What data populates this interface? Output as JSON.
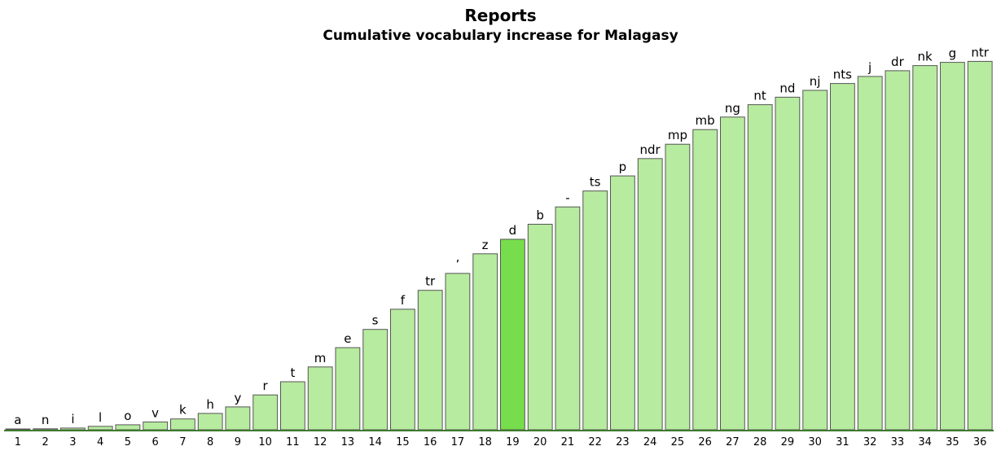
{
  "header": {
    "title": "Reports",
    "subtitle": "Cumulative vocabulary increase for Malagasy"
  },
  "colors": {
    "bar_fill": "#b7eb9f",
    "bar_selected_fill": "#77dd4c",
    "bar_stroke": "#555555",
    "axis": "#3e7a2e"
  },
  "chart_data": {
    "type": "bar",
    "title": "Reports",
    "subtitle": "Cumulative vocabulary increase for Malagasy",
    "xlabel": "",
    "ylabel": "",
    "grid": false,
    "legend": "none",
    "selected_index": 18,
    "categories": [
      "1",
      "2",
      "3",
      "4",
      "5",
      "6",
      "7",
      "8",
      "9",
      "10",
      "11",
      "12",
      "13",
      "14",
      "15",
      "16",
      "17",
      "18",
      "19",
      "20",
      "21",
      "22",
      "23",
      "24",
      "25",
      "26",
      "27",
      "28",
      "29",
      "30",
      "31",
      "32",
      "33",
      "34",
      "35",
      "36"
    ],
    "bar_labels": [
      "a",
      "n",
      "i",
      "l",
      "o",
      "v",
      "k",
      "h",
      "y",
      "r",
      "t",
      "m",
      "e",
      "s",
      "f",
      "tr",
      "’",
      "z",
      "d",
      "b",
      "-",
      "ts",
      "p",
      "ndr",
      "mp",
      "mb",
      "ng",
      "nt",
      "nd",
      "nj",
      "nts",
      "j",
      "dr",
      "nk",
      "g",
      "ntr"
    ],
    "values": [
      0.2,
      0.5,
      0.9,
      1.8,
      2.6,
      4.1,
      5.7,
      8.6,
      12.0,
      18.3,
      25.2,
      33.0,
      43.1,
      52.7,
      63.3,
      73.2,
      82.1,
      92.4,
      100.0,
      107.9,
      117.0,
      125.4,
      133.3,
      142.4,
      149.9,
      157.6,
      164.2,
      170.7,
      174.6,
      178.2,
      181.8,
      185.5,
      188.5,
      191.2,
      192.9,
      193.4
    ],
    "ylim": [
      0,
      200
    ]
  }
}
